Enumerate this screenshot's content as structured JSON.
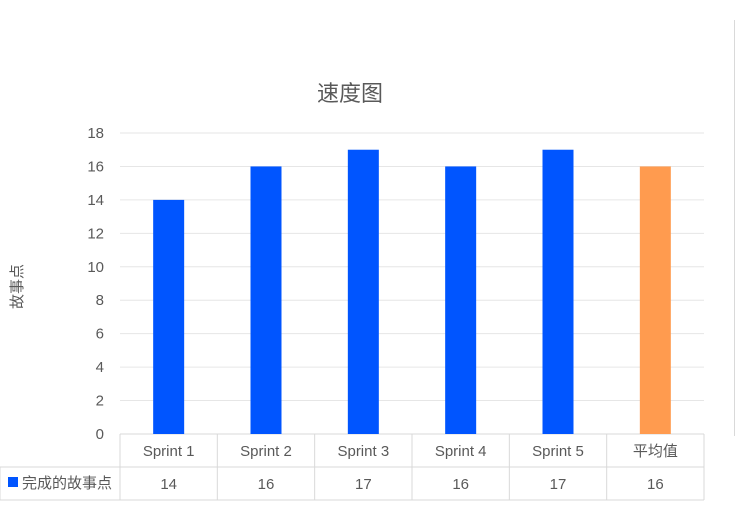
{
  "chart_data": {
    "type": "bar",
    "title": "速度图",
    "ylabel": "故事点",
    "xlabel": "",
    "categories": [
      "Sprint 1",
      "Sprint 2",
      "Sprint 3",
      "Sprint 4",
      "Sprint 5",
      "平均值"
    ],
    "series": [
      {
        "name": "完成的故事点",
        "values": [
          14,
          16,
          17,
          16,
          17,
          16
        ]
      }
    ],
    "ylim": [
      0,
      18
    ],
    "yticks": [
      0,
      2,
      4,
      6,
      8,
      10,
      12,
      14,
      16,
      18
    ],
    "grid": true,
    "data_table": true,
    "colors": {
      "series": "#0055ff",
      "average": "#ff9b4f",
      "grid": "#e6e6e6"
    }
  }
}
